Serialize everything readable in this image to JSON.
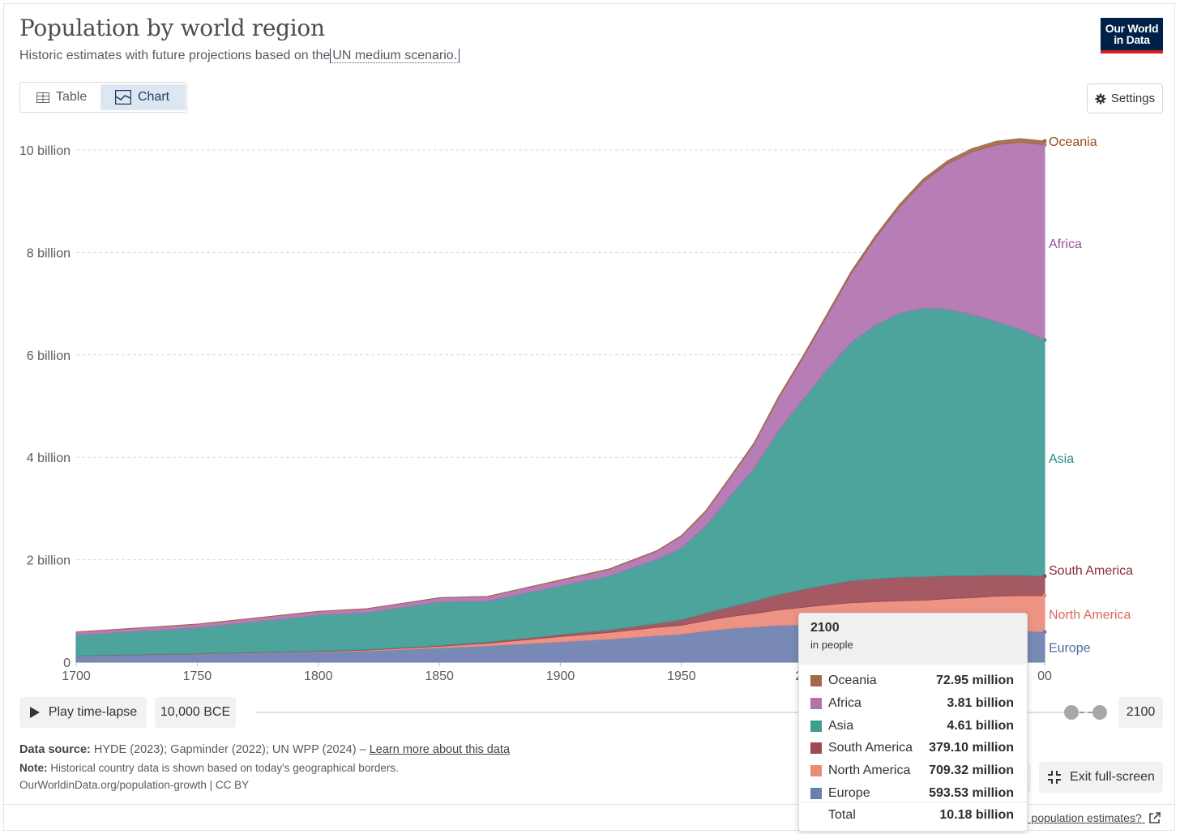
{
  "header": {
    "title": "Population by world region",
    "subtitle_prefix": "Historic estimates with future projections based on the",
    "subtitle_link": "UN medium scenario.",
    "logo_line1": "Our World",
    "logo_line2": "in Data"
  },
  "tabs": {
    "table": "Table",
    "chart": "Chart"
  },
  "settings_label": "Settings",
  "controls": {
    "play_label": "Play time-lapse",
    "start_label": "10,000 BCE",
    "end_label": "2100",
    "exit_label": "Exit full-screen"
  },
  "footer": {
    "source_label": "Data source:",
    "source_text": "HYDE (2023); Gapminder (2022); UN WPP (2024) –",
    "source_link": "Learn more about this data",
    "note_label": "Note:",
    "note_text": "Historical country data is shown based on today's geographical borders.",
    "citation": "OurWorldinData.org/population-growth | CC BY",
    "bottom_link": "r population estimates?"
  },
  "tooltip": {
    "year": "2100",
    "unit": "in people",
    "rows": [
      {
        "name": "Oceania",
        "value": "72.95 million",
        "color": "#a2694a"
      },
      {
        "name": "Africa",
        "value": "3.81 billion",
        "color": "#b072b0"
      },
      {
        "name": "Asia",
        "value": "4.61 billion",
        "color": "#3e9c94"
      },
      {
        "name": "South America",
        "value": "379.10 million",
        "color": "#9c4b56"
      },
      {
        "name": "North America",
        "value": "709.32 million",
        "color": "#ec8a7a"
      },
      {
        "name": "Europe",
        "value": "593.53 million",
        "color": "#6b7fae"
      }
    ],
    "total_label": "Total",
    "total_value": "10.18 billion"
  },
  "chart_data": {
    "type": "area",
    "stacked": true,
    "grid": "horizontal dashed",
    "ylim": [
      0,
      10500000000
    ],
    "xlim": [
      1700,
      2100
    ],
    "x_ticks": [
      "1700",
      "1750",
      "1800",
      "1850",
      "1900",
      "1950",
      "20",
      "00"
    ],
    "y_ticks": [
      {
        "value": 0,
        "label": "0"
      },
      {
        "value": 2000000000,
        "label": "2 billion"
      },
      {
        "value": 4000000000,
        "label": "4 billion"
      },
      {
        "value": 6000000000,
        "label": "6 billion"
      },
      {
        "value": 8000000000,
        "label": "8 billion"
      },
      {
        "value": 10000000000,
        "label": "10 billion"
      }
    ],
    "x": [
      1700,
      1750,
      1800,
      1820,
      1850,
      1870,
      1900,
      1920,
      1940,
      1950,
      1960,
      1970,
      1980,
      1990,
      2000,
      2010,
      2020,
      2030,
      2040,
      2050,
      2060,
      2070,
      2080,
      2090,
      2100
    ],
    "series": [
      {
        "name": "Europe",
        "color": "#6b7fae",
        "values": [
          0.12,
          0.16,
          0.2,
          0.22,
          0.28,
          0.32,
          0.4,
          0.45,
          0.52,
          0.55,
          0.61,
          0.66,
          0.69,
          0.72,
          0.73,
          0.74,
          0.75,
          0.74,
          0.73,
          0.71,
          0.69,
          0.66,
          0.64,
          0.62,
          0.59
        ]
      },
      {
        "name": "North America",
        "color": "#ec8a7a",
        "values": [
          0.002,
          0.003,
          0.01,
          0.015,
          0.03,
          0.05,
          0.1,
          0.13,
          0.16,
          0.17,
          0.2,
          0.23,
          0.26,
          0.3,
          0.34,
          0.38,
          0.41,
          0.44,
          0.47,
          0.5,
          0.55,
          0.6,
          0.65,
          0.68,
          0.71
        ]
      },
      {
        "name": "South America",
        "color": "#9c4b56",
        "values": [
          0.006,
          0.008,
          0.01,
          0.012,
          0.017,
          0.023,
          0.04,
          0.05,
          0.08,
          0.11,
          0.15,
          0.19,
          0.24,
          0.3,
          0.35,
          0.39,
          0.43,
          0.45,
          0.46,
          0.46,
          0.45,
          0.43,
          0.41,
          0.4,
          0.38
        ]
      },
      {
        "name": "Asia",
        "color": "#3e9c94",
        "values": [
          0.4,
          0.5,
          0.7,
          0.72,
          0.85,
          0.8,
          0.95,
          1.05,
          1.25,
          1.4,
          1.7,
          2.15,
          2.6,
          3.2,
          3.7,
          4.2,
          4.65,
          4.95,
          5.15,
          5.25,
          5.2,
          5.1,
          4.95,
          4.8,
          4.61
        ]
      },
      {
        "name": "Africa",
        "color": "#b072b0",
        "values": [
          0.06,
          0.07,
          0.07,
          0.075,
          0.08,
          0.09,
          0.11,
          0.13,
          0.16,
          0.23,
          0.28,
          0.36,
          0.47,
          0.63,
          0.81,
          1.04,
          1.34,
          1.69,
          2.07,
          2.46,
          2.84,
          3.17,
          3.45,
          3.65,
          3.81
        ]
      },
      {
        "name": "Oceania",
        "color": "#a2694a",
        "values": [
          0.001,
          0.002,
          0.002,
          0.002,
          0.002,
          0.003,
          0.006,
          0.009,
          0.011,
          0.013,
          0.016,
          0.02,
          0.023,
          0.027,
          0.031,
          0.037,
          0.043,
          0.049,
          0.054,
          0.058,
          0.063,
          0.067,
          0.07,
          0.072,
          0.073
        ]
      }
    ],
    "values_unit": "billion"
  }
}
